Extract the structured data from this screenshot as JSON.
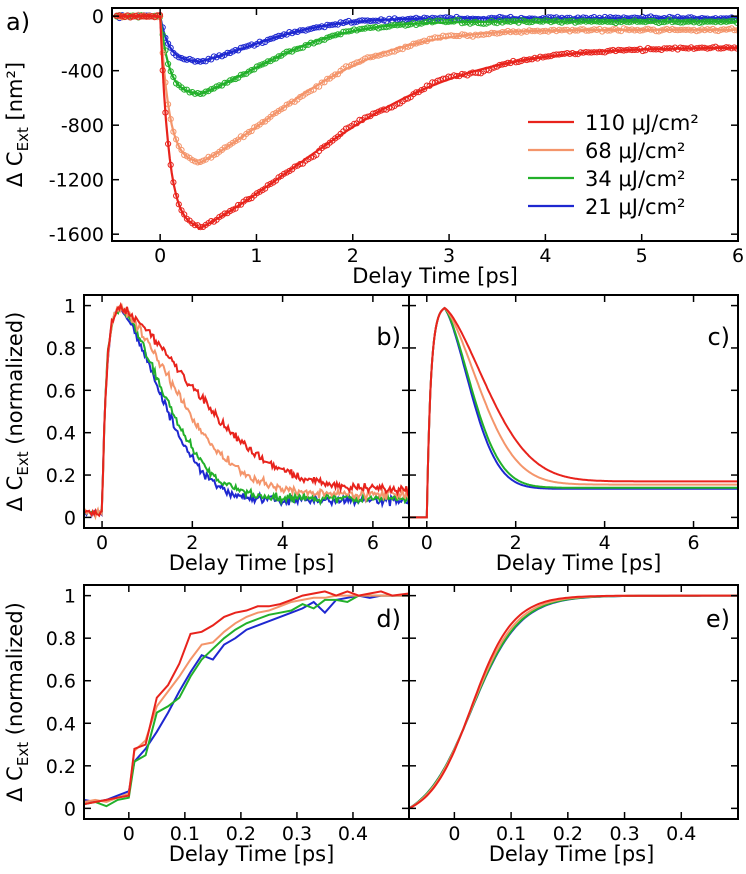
{
  "chart_data": [
    {
      "panel": "a)",
      "type": "line",
      "xlabel": "Delay Time [ps]",
      "ylabel": "Δ C_Ext [nm²]",
      "ylabel_main": "Δ C",
      "ylabel_sub": "Ext",
      "ylabel_unit": " [nm²]",
      "xlim": [
        -0.5,
        6
      ],
      "ylim": [
        -1650,
        60
      ],
      "xticks": [
        "0",
        "1",
        "2",
        "3",
        "4",
        "5",
        "6"
      ],
      "yticks": [
        "0",
        "-400",
        "-800",
        "-1200",
        "-1600"
      ],
      "legend_position": "right",
      "series": [
        {
          "name": "110 μJ/cm²",
          "color": "#e8231c",
          "peak": -1560,
          "tau_decay": 1.7,
          "tau_slow": 0.9,
          "offset": -230
        },
        {
          "name": "68 μJ/cm²",
          "color": "#f4956b",
          "peak": -1080,
          "tau_decay": 1.25,
          "tau_slow": 0.75,
          "offset": -100
        },
        {
          "name": "34 μJ/cm²",
          "color": "#22b02a",
          "peak": -575,
          "tau_decay": 0.95,
          "tau_slow": 0.65,
          "offset": -40
        },
        {
          "name": "21 μJ/cm²",
          "color": "#1e28d0",
          "peak": -335,
          "tau_decay": 0.85,
          "tau_slow": 0.6,
          "offset": -15
        }
      ]
    },
    {
      "panel": "b)",
      "type": "line",
      "xlabel": "Delay Time [ps]",
      "ylabel": "Δ C_Ext (normalized)",
      "xlim": [
        -0.4,
        6.8
      ],
      "ylim": [
        -0.05,
        1.05
      ],
      "xticks": [
        "0",
        "2",
        "4",
        "6"
      ],
      "yticks": [
        "0",
        "0.2",
        "0.4",
        "0.6",
        "0.8",
        "1"
      ],
      "series": [
        {
          "color": "#e8231c",
          "tau_decay": 2.1,
          "floor": 0.13
        },
        {
          "color": "#f4956b",
          "tau_decay": 1.6,
          "floor": 0.11
        },
        {
          "color": "#22b02a",
          "tau_decay": 1.25,
          "floor": 0.09
        },
        {
          "color": "#1e28d0",
          "tau_decay": 1.15,
          "floor": 0.08
        }
      ]
    },
    {
      "panel": "c)",
      "type": "line",
      "xlabel": "Delay Time [ps]",
      "xlim": [
        -0.4,
        7
      ],
      "ylim": [
        -0.05,
        1.05
      ],
      "xticks": [
        "0",
        "2",
        "4",
        "6"
      ],
      "series": [
        {
          "color": "#e8231c",
          "tau_decay": 1.2,
          "floor": 0.17
        },
        {
          "color": "#f4956b",
          "tau_decay": 1.0,
          "floor": 0.155
        },
        {
          "color": "#22b02a",
          "tau_decay": 0.78,
          "floor": 0.14
        },
        {
          "color": "#1e28d0",
          "tau_decay": 0.74,
          "floor": 0.135
        }
      ]
    },
    {
      "panel": "d)",
      "type": "line",
      "xlabel": "Delay Time [ps]",
      "ylabel": "Δ C_Ext (normalized)",
      "xlim": [
        -0.08,
        0.5
      ],
      "ylim": [
        -0.05,
        1.05
      ],
      "xticks": [
        "0",
        "0.1",
        "0.2",
        "0.3",
        "0.4"
      ],
      "yticks": [
        "0",
        "0.2",
        "0.4",
        "0.6",
        "0.8",
        "1"
      ],
      "series": [
        {
          "color": "#1e28d0",
          "x": [
            -0.08,
            -0.06,
            -0.04,
            -0.02,
            0,
            0.01,
            0.03,
            0.05,
            0.07,
            0.09,
            0.11,
            0.13,
            0.15,
            0.17,
            0.19,
            0.21,
            0.23,
            0.25,
            0.27,
            0.29,
            0.31,
            0.33,
            0.35,
            0.37,
            0.39,
            0.41,
            0.43,
            0.45,
            0.47,
            0.5
          ],
          "y": [
            0.04,
            0.03,
            0.04,
            0.06,
            0.08,
            0.22,
            0.28,
            0.36,
            0.45,
            0.55,
            0.64,
            0.72,
            0.7,
            0.77,
            0.8,
            0.84,
            0.86,
            0.88,
            0.9,
            0.92,
            0.94,
            0.97,
            0.92,
            0.98,
            0.99,
            1.0,
            0.99,
            1.0,
            1.0,
            1.0
          ]
        },
        {
          "color": "#22b02a",
          "x": [
            -0.08,
            -0.06,
            -0.04,
            -0.02,
            0,
            0.01,
            0.03,
            0.05,
            0.07,
            0.09,
            0.11,
            0.13,
            0.15,
            0.17,
            0.19,
            0.21,
            0.23,
            0.25,
            0.27,
            0.29,
            0.31,
            0.33,
            0.35,
            0.37,
            0.39,
            0.41,
            0.43,
            0.45,
            0.47,
            0.5
          ],
          "y": [
            0.02,
            0.03,
            0.01,
            0.04,
            0.05,
            0.22,
            0.25,
            0.45,
            0.48,
            0.52,
            0.62,
            0.7,
            0.75,
            0.8,
            0.84,
            0.87,
            0.89,
            0.91,
            0.92,
            0.93,
            0.96,
            0.94,
            0.98,
            0.98,
            0.97,
            1.0,
            1.0,
            1.0,
            1.0,
            1.0
          ]
        },
        {
          "color": "#f4956b",
          "x": [
            -0.08,
            -0.06,
            -0.04,
            -0.02,
            0,
            0.01,
            0.03,
            0.05,
            0.07,
            0.09,
            0.11,
            0.13,
            0.15,
            0.17,
            0.19,
            0.21,
            0.23,
            0.25,
            0.27,
            0.29,
            0.31,
            0.33,
            0.35,
            0.37,
            0.39,
            0.41,
            0.43,
            0.45,
            0.47,
            0.5
          ],
          "y": [
            0.03,
            0.04,
            0.03,
            0.05,
            0.07,
            0.27,
            0.32,
            0.48,
            0.55,
            0.62,
            0.7,
            0.77,
            0.78,
            0.83,
            0.87,
            0.9,
            0.92,
            0.93,
            0.95,
            0.97,
            0.98,
            0.99,
            0.99,
            1.0,
            1.0,
            1.0,
            1.0,
            1.0,
            1.0,
            1.0
          ]
        },
        {
          "color": "#e8231c",
          "x": [
            -0.08,
            -0.06,
            -0.04,
            -0.02,
            0,
            0.01,
            0.03,
            0.05,
            0.07,
            0.09,
            0.11,
            0.13,
            0.15,
            0.17,
            0.19,
            0.21,
            0.23,
            0.25,
            0.27,
            0.29,
            0.31,
            0.33,
            0.35,
            0.37,
            0.39,
            0.41,
            0.43,
            0.45,
            0.47,
            0.5
          ],
          "y": [
            0.02,
            0.03,
            0.04,
            0.05,
            0.06,
            0.28,
            0.3,
            0.52,
            0.58,
            0.68,
            0.82,
            0.83,
            0.86,
            0.9,
            0.92,
            0.93,
            0.95,
            0.95,
            0.96,
            0.98,
            1.0,
            1.01,
            1.02,
            1.0,
            1.02,
            1.0,
            1.01,
            1.02,
            1.0,
            1.01
          ]
        }
      ]
    },
    {
      "panel": "e)",
      "type": "line",
      "xlabel": "Delay Time [ps]",
      "xlim": [
        -0.08,
        0.5
      ],
      "ylim": [
        -0.05,
        1.05
      ],
      "xticks": [
        "0",
        "0.1",
        "0.2",
        "0.3",
        "0.4"
      ],
      "series": [
        {
          "color": "#1e28d0",
          "t0": 0.03,
          "tau": 0.072
        },
        {
          "color": "#22b02a",
          "t0": 0.03,
          "tau": 0.071
        },
        {
          "color": "#f4956b",
          "t0": 0.03,
          "tau": 0.067
        },
        {
          "color": "#e8231c",
          "t0": 0.03,
          "tau": 0.062
        }
      ]
    }
  ]
}
